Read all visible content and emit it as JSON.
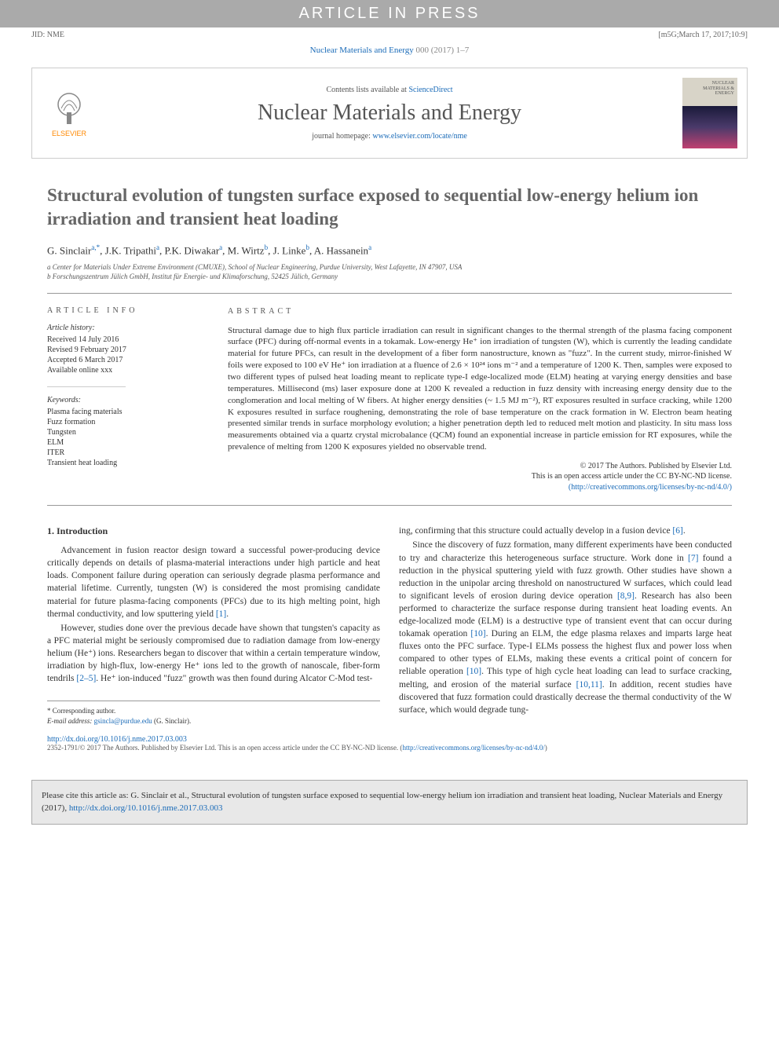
{
  "topbar": "ARTICLE IN PRESS",
  "jid": "JID: NME",
  "jid_right": "[m5G;March 17, 2017;10:9]",
  "citation_top": {
    "journal_link": "Nuclear Materials and Energy",
    "rest": " 000 (2017) 1–7"
  },
  "masthead": {
    "elsevier": "ELSEVIER",
    "contents_prefix": "Contents lists available at ",
    "contents_link": "ScienceDirect",
    "journal": "Nuclear Materials and Energy",
    "homepage_prefix": "journal homepage: ",
    "homepage_link": "www.elsevier.com/locate/nme",
    "cover_text": "NUCLEAR MATERIALS & ENERGY"
  },
  "title": "Structural evolution of tungsten surface exposed to sequential low-energy helium ion irradiation and transient heat loading",
  "authors_html": "G. Sinclair<sup>a,*</sup>, J.K. Tripathi<sup>a</sup>, P.K. Diwakar<sup>a</sup>, M. Wirtz<sup>b</sup>, J. Linke<sup>b</sup>, A. Hassanein<sup>a</sup>",
  "affils": [
    "a Center for Materials Under Extreme Environment (CMUXE), School of Nuclear Engineering, Purdue University, West Lafayette, IN 47907, USA",
    "b Forschungszentrum Jülich GmbH, Institut für Energie- und Klimaforschung, 52425 Jülich, Germany"
  ],
  "article_info_label": "ARTICLE INFO",
  "abstract_label": "ABSTRACT",
  "history": {
    "label": "Article history:",
    "received": "Received 14 July 2016",
    "revised": "Revised 9 February 2017",
    "accepted": "Accepted 6 March 2017",
    "online": "Available online xxx"
  },
  "keywords": {
    "label": "Keywords:",
    "items": [
      "Plasma facing materials",
      "Fuzz formation",
      "Tungsten",
      "ELM",
      "ITER",
      "Transient heat loading"
    ]
  },
  "abstract": "Structural damage due to high flux particle irradiation can result in significant changes to the thermal strength of the plasma facing component surface (PFC) during off-normal events in a tokamak. Low-energy He⁺ ion irradiation of tungsten (W), which is currently the leading candidate material for future PFCs, can result in the development of a fiber form nanostructure, known as \"fuzz\". In the current study, mirror-finished W foils were exposed to 100 eV He⁺ ion irradiation at a fluence of 2.6 × 10²⁴ ions m⁻² and a temperature of 1200 K. Then, samples were exposed to two different types of pulsed heat loading meant to replicate type-I edge-localized mode (ELM) heating at varying energy densities and base temperatures. Millisecond (ms) laser exposure done at 1200 K revealed a reduction in fuzz density with increasing energy density due to the conglomeration and local melting of W fibers. At higher energy densities (~ 1.5 MJ m⁻²), RT exposures resulted in surface cracking, while 1200 K exposures resulted in surface roughening, demonstrating the role of base temperature on the crack formation in W. Electron beam heating presented similar trends in surface morphology evolution; a higher penetration depth led to reduced melt motion and plasticity. In situ mass loss measurements obtained via a quartz crystal microbalance (QCM) found an exponential increase in particle emission for RT exposures, while the prevalence of melting from 1200 K exposures yielded no observable trend.",
  "copyright": {
    "line1": "© 2017 The Authors. Published by Elsevier Ltd.",
    "line2": "This is an open access article under the CC BY-NC-ND license.",
    "link": "(http://creativecommons.org/licenses/by-nc-nd/4.0/)"
  },
  "intro_heading": "1. Introduction",
  "col1_p1": "Advancement in fusion reactor design toward a successful power-producing device critically depends on details of plasma-material interactions under high particle and heat loads. Component failure during operation can seriously degrade plasma performance and material lifetime. Currently, tungsten (W) is considered the most promising candidate material for future plasma-facing components (PFCs) due to its high melting point, high thermal conductivity, and low sputtering yield ",
  "col1_p1_ref": "[1]",
  "col1_p2_a": "However, studies done over the previous decade have shown that tungsten's capacity as a PFC material might be seriously compromised due to radiation damage from low-energy helium (He⁺) ions. Researchers began to discover that within a certain temperature window, irradiation by high-flux, low-energy He⁺ ions led to the growth of nanoscale, fiber-form tendrils ",
  "col1_p2_ref": "[2–5]",
  "col1_p2_b": ". He⁺ ion-induced \"fuzz\" growth was then found during Alcator C-Mod test-",
  "col2_p0_a": "ing, confirming that this structure could actually develop in a fusion device ",
  "col2_p0_ref": "[6]",
  "col2_p1_a": "Since the discovery of fuzz formation, many different experiments have been conducted to try and characterize this heterogeneous surface structure. Work done in ",
  "col2_p1_ref1": "[7]",
  "col2_p1_b": " found a reduction in the physical sputtering yield with fuzz growth. Other studies have shown a reduction in the unipolar arcing threshold on nanostructured W surfaces, which could lead to significant levels of erosion during device operation ",
  "col2_p1_ref2": "[8,9]",
  "col2_p1_c": ". Research has also been performed to characterize the surface response during transient heat loading events. An edge-localized mode (ELM) is a destructive type of transient event that can occur during tokamak operation ",
  "col2_p1_ref3": "[10]",
  "col2_p1_d": ". During an ELM, the edge plasma relaxes and imparts large heat fluxes onto the PFC surface. Type-I ELMs possess the highest flux and power loss when compared to other types of ELMs, making these events a critical point of concern for reliable operation ",
  "col2_p1_ref4": "[10]",
  "col2_p1_e": ". This type of high cycle heat loading can lead to surface cracking, melting, and erosion of the material surface ",
  "col2_p1_ref5": "[10,11]",
  "col2_p1_f": ". In addition, recent studies have discovered that fuzz formation could drastically decrease the thermal conductivity of the W surface, which would degrade tung-",
  "footnote": {
    "corr": "* Corresponding author.",
    "email_label": "E-mail address: ",
    "email": "gsincla@purdue.edu",
    "email_tail": " (G. Sinclair)."
  },
  "doi": "http://dx.doi.org/10.1016/j.nme.2017.03.003",
  "license_bottom_a": "2352-1791/© 2017 The Authors. Published by Elsevier Ltd. This is an open access article under the CC BY-NC-ND license. (",
  "license_bottom_link": "http://creativecommons.org/licenses/by-nc-nd/4.0/",
  "license_bottom_b": ")",
  "citebox_a": "Please cite this article as: G. Sinclair et al., Structural evolution of tungsten surface exposed to sequential low-energy helium ion irradiation and transient heat loading, Nuclear Materials and Energy (2017), ",
  "citebox_link": "http://dx.doi.org/10.1016/j.nme.2017.03.003"
}
